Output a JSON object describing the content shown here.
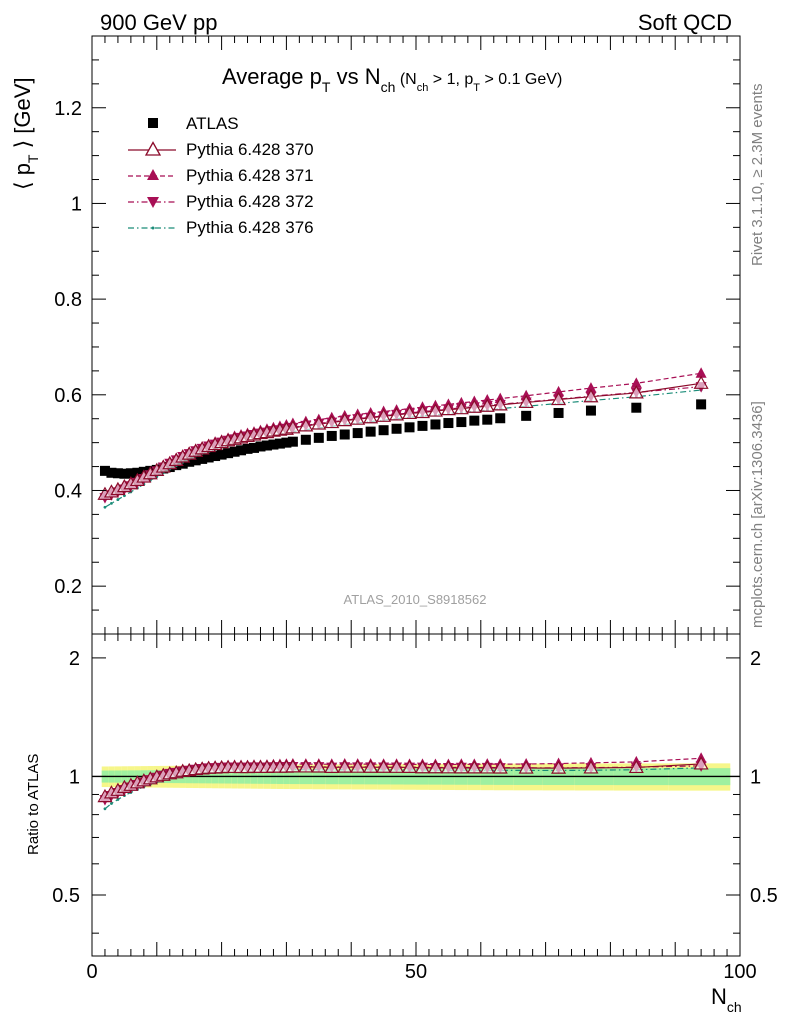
{
  "header": {
    "left": "900 GeV pp",
    "right": "Soft QCD"
  },
  "side_texts": {
    "rivet": "Rivet 3.1.10, ≥ 2.3M events",
    "mcplots": "mcplots.cern.ch [arXiv:1306.3436]"
  },
  "watermark": "ATLAS_2010_S8918562",
  "title": {
    "main_a": "Average p",
    "main_a_sub": "T",
    "main_b": " vs N",
    "main_b_sub": "ch",
    "paren_a": " (N",
    "paren_a_sub": "ch",
    "paren_b": " > 1, p",
    "paren_b_sub": "T",
    "paren_c": " > 0.1 GeV)"
  },
  "main_ylabel": {
    "a": "⟨ p",
    "a_sub": "T",
    "b": " ⟩  [GeV]"
  },
  "ratio_ylabel": "Ratio to ATLAS",
  "xlabel": {
    "main": "N",
    "sub": "ch"
  },
  "colors": {
    "atlas": "#000000",
    "p370": "#8b0a2a",
    "p371": "#a80f55",
    "p372": "#a80f55",
    "p376": "#1a8c78",
    "band_outer": "#f6f68a",
    "band_inner": "#9ff0a0",
    "band_mid": "#7de0c8"
  },
  "chart_data": {
    "type": "scatter",
    "x": [
      2,
      3,
      4,
      5,
      6,
      7,
      8,
      9,
      10,
      11,
      12,
      13,
      14,
      15,
      16,
      17,
      18,
      19,
      20,
      21,
      22,
      23,
      24,
      25,
      26,
      27,
      28,
      29,
      30,
      31,
      33,
      35,
      37,
      39,
      41,
      43,
      45,
      47,
      49,
      51,
      53,
      55,
      57,
      59,
      61,
      63,
      67,
      72,
      77,
      84,
      94
    ],
    "xlim": [
      0,
      100
    ],
    "ylim": [
      0.1,
      1.35
    ],
    "xticks": [
      "0",
      "50",
      "100"
    ],
    "yticks": [
      "0.2",
      "0.4",
      "0.6",
      "0.8",
      "1",
      "1.2"
    ],
    "ratio_ylim": [
      0.35,
      2.3
    ],
    "ratio_yticks": [
      "0.5",
      "1",
      "2"
    ],
    "series": [
      {
        "name": "ATLAS",
        "style": "data",
        "values": [
          0.441,
          0.437,
          0.436,
          0.435,
          0.436,
          0.437,
          0.439,
          0.441,
          0.443,
          0.446,
          0.449,
          0.453,
          0.456,
          0.46,
          0.463,
          0.466,
          0.469,
          0.472,
          0.475,
          0.478,
          0.481,
          0.484,
          0.487,
          0.489,
          0.492,
          0.494,
          0.496,
          0.498,
          0.5,
          0.502,
          0.506,
          0.51,
          0.514,
          0.517,
          0.52,
          0.523,
          0.526,
          0.529,
          0.532,
          0.535,
          0.538,
          0.541,
          0.543,
          0.546,
          0.548,
          0.551,
          0.556,
          0.562,
          0.567,
          0.573,
          0.58
        ]
      },
      {
        "name": "Pythia 6.428 370",
        "style": "solid-open-triangle",
        "values": [
          0.392,
          0.397,
          0.402,
          0.408,
          0.414,
          0.421,
          0.428,
          0.435,
          0.442,
          0.449,
          0.456,
          0.463,
          0.47,
          0.476,
          0.482,
          0.487,
          0.492,
          0.496,
          0.5,
          0.504,
          0.507,
          0.51,
          0.513,
          0.516,
          0.519,
          0.521,
          0.524,
          0.526,
          0.528,
          0.531,
          0.535,
          0.539,
          0.542,
          0.546,
          0.549,
          0.552,
          0.555,
          0.558,
          0.561,
          0.563,
          0.566,
          0.569,
          0.571,
          0.574,
          0.576,
          0.579,
          0.584,
          0.59,
          0.596,
          0.604,
          0.624
        ]
      },
      {
        "name": "Pythia 6.428 371",
        "style": "dashed-triangle-up",
        "values": [
          0.39,
          0.395,
          0.401,
          0.407,
          0.413,
          0.42,
          0.428,
          0.436,
          0.444,
          0.452,
          0.46,
          0.467,
          0.474,
          0.48,
          0.486,
          0.491,
          0.496,
          0.501,
          0.505,
          0.509,
          0.513,
          0.516,
          0.519,
          0.522,
          0.525,
          0.528,
          0.531,
          0.534,
          0.537,
          0.54,
          0.544,
          0.548,
          0.552,
          0.556,
          0.559,
          0.562,
          0.565,
          0.568,
          0.571,
          0.574,
          0.577,
          0.58,
          0.583,
          0.586,
          0.589,
          0.592,
          0.598,
          0.606,
          0.614,
          0.624,
          0.645
        ]
      },
      {
        "name": "Pythia 6.428 372",
        "style": "dashdot-triangle-down",
        "values": [
          0.385,
          0.391,
          0.397,
          0.403,
          0.41,
          0.417,
          0.425,
          0.433,
          0.441,
          0.449,
          0.457,
          0.464,
          0.471,
          0.477,
          0.483,
          0.488,
          0.493,
          0.497,
          0.501,
          0.505,
          0.508,
          0.511,
          0.514,
          0.517,
          0.52,
          0.522,
          0.525,
          0.527,
          0.53,
          0.532,
          0.536,
          0.54,
          0.543,
          0.547,
          0.55,
          0.553,
          0.556,
          0.559,
          0.562,
          0.565,
          0.567,
          0.57,
          0.573,
          0.575,
          0.578,
          0.58,
          0.585,
          0.591,
          0.597,
          0.605,
          0.617
        ]
      },
      {
        "name": "Pythia 6.428 376",
        "style": "dashdot-dots",
        "values": [
          0.365,
          0.373,
          0.381,
          0.389,
          0.397,
          0.405,
          0.413,
          0.421,
          0.429,
          0.437,
          0.445,
          0.452,
          0.459,
          0.466,
          0.472,
          0.477,
          0.482,
          0.486,
          0.49,
          0.494,
          0.498,
          0.501,
          0.504,
          0.507,
          0.51,
          0.513,
          0.516,
          0.518,
          0.521,
          0.523,
          0.527,
          0.531,
          0.534,
          0.538,
          0.541,
          0.544,
          0.547,
          0.55,
          0.553,
          0.556,
          0.558,
          0.561,
          0.563,
          0.566,
          0.568,
          0.571,
          0.576,
          0.582,
          0.588,
          0.596,
          0.61
        ]
      }
    ]
  }
}
